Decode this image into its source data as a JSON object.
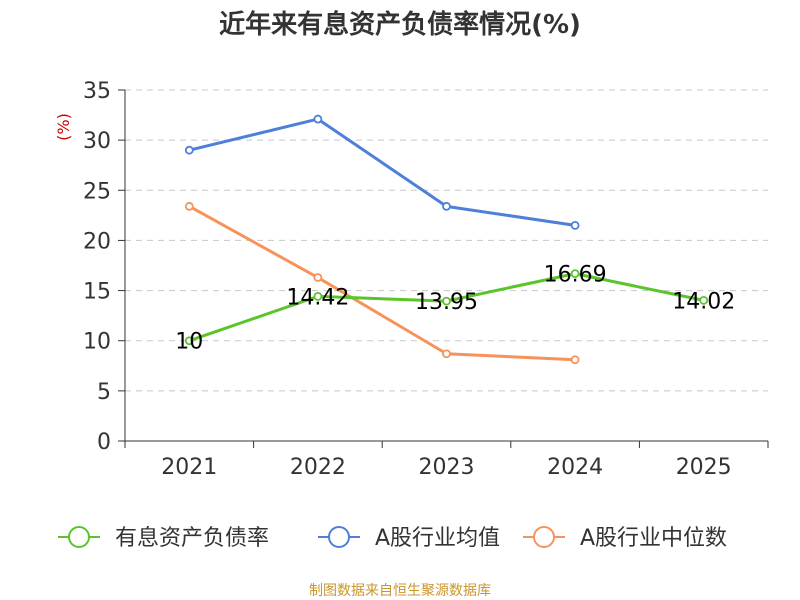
{
  "chart_data": {
    "type": "line",
    "title": "近年来有息资产负债率情况(%)",
    "ylabel": "(%)",
    "xlabel": "",
    "categories": [
      "2021",
      "2022",
      "2023",
      "2024",
      "2025"
    ],
    "ylim": [
      0,
      35
    ],
    "yticks": [
      0,
      5,
      10,
      15,
      20,
      25,
      30,
      35
    ],
    "grid": true,
    "legend_position": "bottom",
    "series": [
      {
        "name": "有息资产负债率",
        "color": "#5cc42b",
        "values": [
          10,
          14.42,
          13.95,
          16.69,
          14.02
        ],
        "labels": [
          "10",
          "14.42",
          "13.95",
          "16.69",
          "14.02"
        ]
      },
      {
        "name": "A股行业均值",
        "color": "#4e7fd9",
        "values": [
          29,
          32.1,
          23.4,
          21.5,
          null
        ]
      },
      {
        "name": "A股行业中位数",
        "color": "#f7925b",
        "values": [
          23.4,
          16.3,
          8.7,
          8.1,
          null
        ]
      }
    ]
  },
  "source": {
    "text": "制图数据来自恒生聚源数据库",
    "color": "#c8962c"
  }
}
